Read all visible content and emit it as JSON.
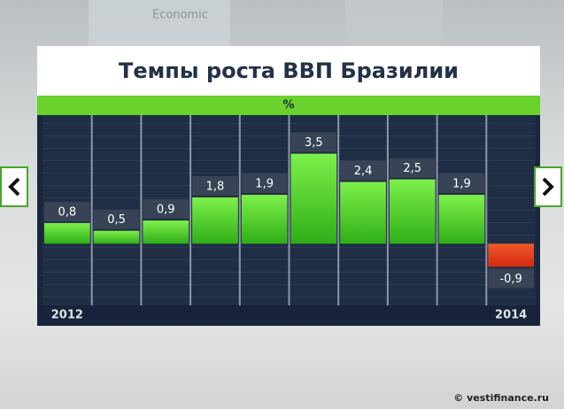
{
  "chart_data": {
    "type": "bar",
    "title": "Темпы роста ВВП Бразилии",
    "unit_label": "%",
    "categories": [
      "2012",
      null,
      null,
      null,
      null,
      null,
      null,
      null,
      null,
      "2014"
    ],
    "values": [
      0.8,
      0.5,
      0.9,
      1.8,
      1.9,
      3.5,
      2.4,
      2.5,
      1.9,
      -0.9
    ],
    "value_labels": [
      "0,8",
      "0,5",
      "0,9",
      "1,8",
      "1,9",
      "3,5",
      "2,4",
      "2,5",
      "1,9",
      "-0,9"
    ],
    "color": "#4fd12a",
    "negative_color": "#e8401e",
    "ylim": [
      -2.4,
      5
    ]
  },
  "background_text": "Economic",
  "watermark": "© vestifinance.ru"
}
